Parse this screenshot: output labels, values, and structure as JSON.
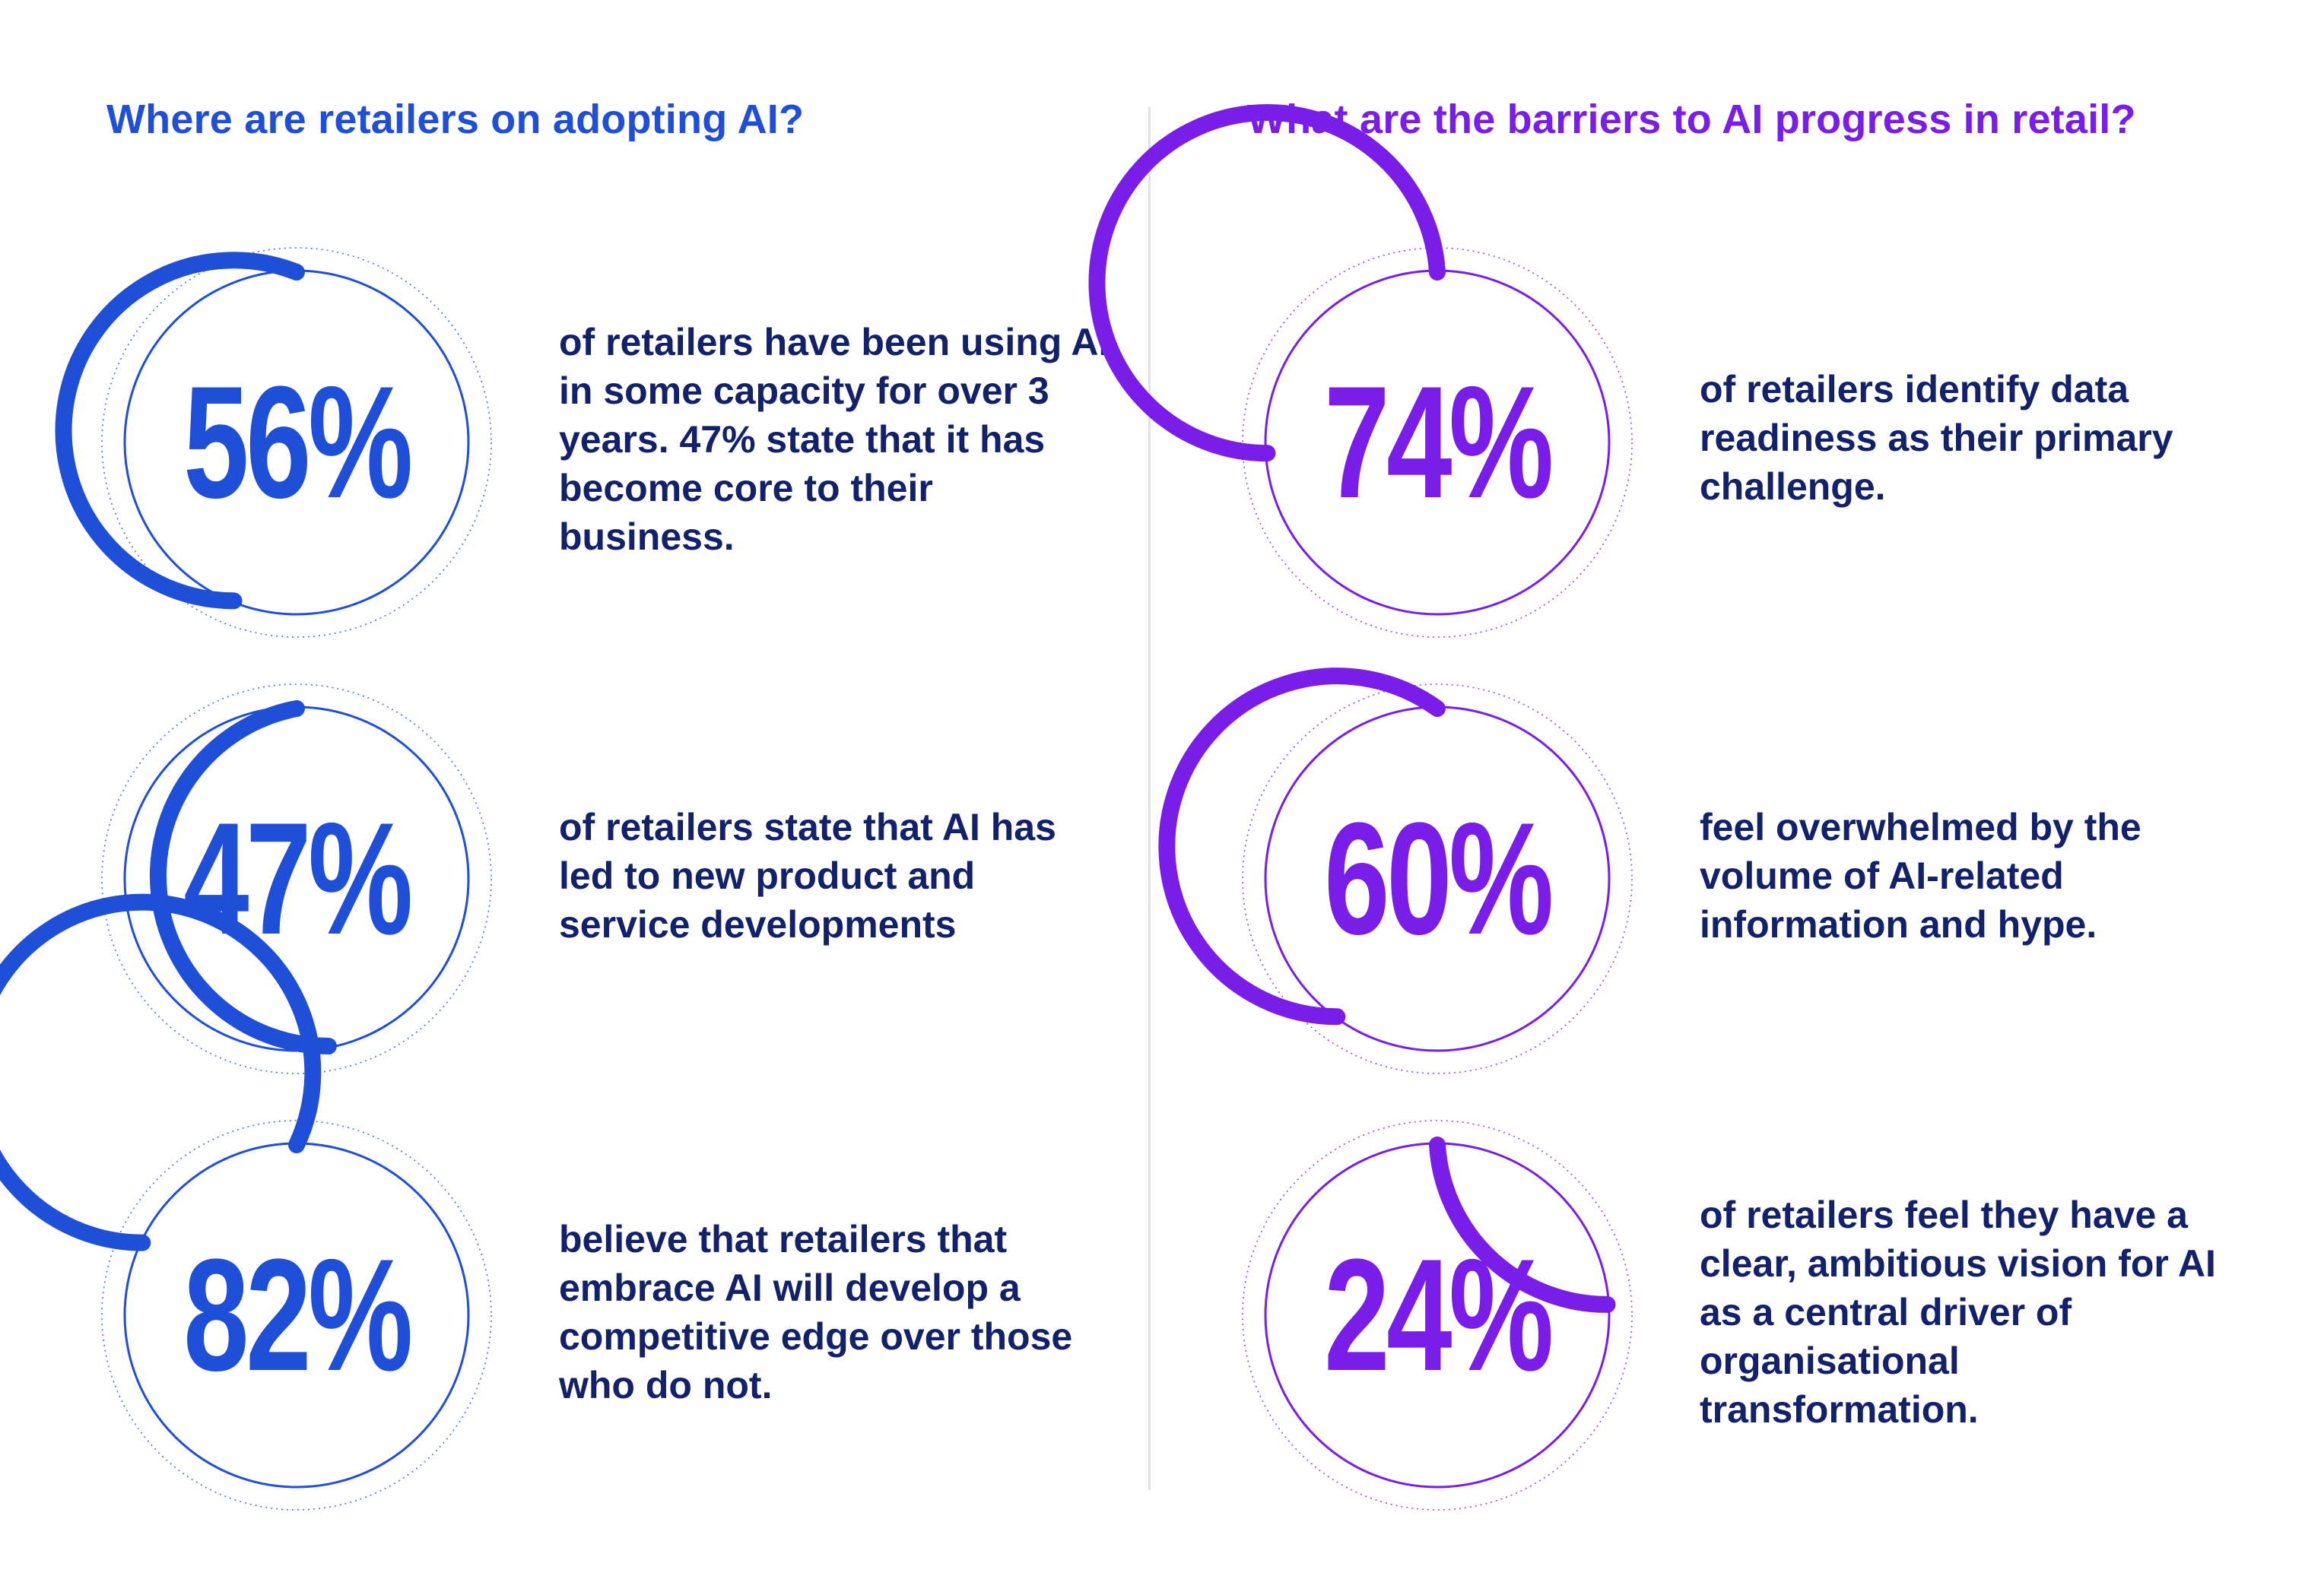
{
  "colors": {
    "heading": "#1f4ed8",
    "body_text": "#13216b",
    "left_accent": "#1f4ed8",
    "right_accent": "#7a1de8",
    "divider": "#e2e2e2"
  },
  "chart_data": [
    {
      "type": "radial-progress",
      "title": "Where are retailers on adopting AI?",
      "items": [
        {
          "value": 56,
          "label": "56%",
          "caption": "of retailers have been using AI in some capacity for over 3 years. 47% state that it has become core to their business."
        },
        {
          "value": 47,
          "label": "47%",
          "caption": "of retailers state that AI has led to new product and service developments"
        },
        {
          "value": 82,
          "label": "82%",
          "caption": "believe that retailers that embrace AI will develop a competitive edge over those who do not."
        }
      ]
    },
    {
      "type": "radial-progress",
      "title": "What are the barriers to AI progress in retail?",
      "items": [
        {
          "value": 74,
          "label": "74%",
          "caption": "of retailers identify data readiness as their primary challenge."
        },
        {
          "value": 60,
          "label": "60%",
          "caption": "feel overwhelmed by the volume of AI-related information and hype."
        },
        {
          "value": 24,
          "label": "24%",
          "caption": "of retailers feel they have a clear, ambitious vision for AI as a central driver of organisational transformation."
        }
      ]
    }
  ]
}
